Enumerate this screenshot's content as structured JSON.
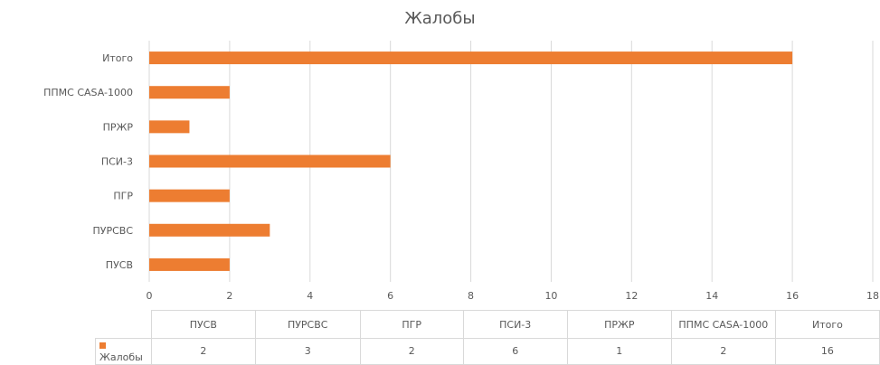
{
  "chart_data": {
    "type": "bar",
    "orientation": "horizontal",
    "title": "Жалобы",
    "categories": [
      "ПУСВ",
      "ПУРСВС",
      "ПГР",
      "ПСИ-3",
      "ПРЖР",
      "ППМС CASA-1000",
      "Итого"
    ],
    "series": [
      {
        "name": "Жалобы",
        "values": [
          2,
          3,
          2,
          6,
          1,
          2,
          16
        ],
        "color": "#ed7d31"
      }
    ],
    "xlim": [
      0,
      18
    ],
    "x_ticks": [
      "0",
      "2",
      "4",
      "6",
      "8",
      "10",
      "12",
      "14",
      "16",
      "18"
    ],
    "grid": true,
    "data_table": true
  }
}
